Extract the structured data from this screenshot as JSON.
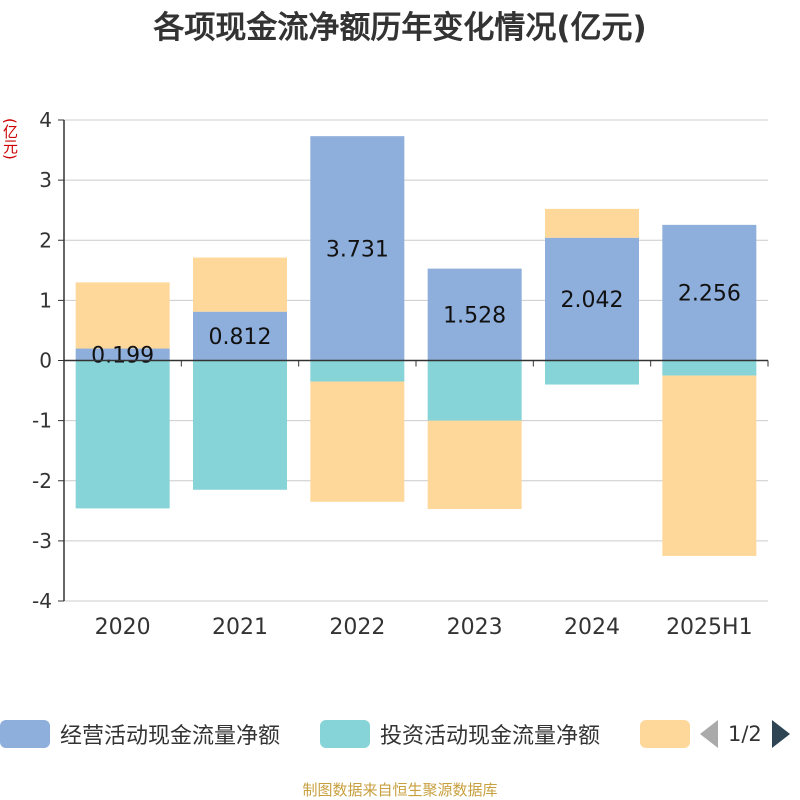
{
  "chart_data": {
    "type": "bar",
    "stacked": true,
    "title": "各项现金流净额历年变化情况(亿元)",
    "unit_label": "(亿元)",
    "categories": [
      "2020",
      "2021",
      "2022",
      "2023",
      "2024",
      "2025H1"
    ],
    "ylim": [
      -4,
      4
    ],
    "yticks": [
      "4",
      "3",
      "2",
      "1",
      "0",
      "-1",
      "-2",
      "-3",
      "-4"
    ],
    "grid": true,
    "legend_position": "bottom",
    "series": [
      {
        "name": "经营活动现金流量净额",
        "color": "#8eaedb",
        "values": [
          0.199,
          0.812,
          3.731,
          1.528,
          2.042,
          2.256
        ],
        "labels": [
          "0.199",
          "0.812",
          "3.731",
          "1.528",
          "2.042",
          "2.256"
        ]
      },
      {
        "name": "投资活动现金流量净额",
        "color": "#86d4d8",
        "values": [
          -2.46,
          -2.15,
          -0.35,
          -1.0,
          -0.4,
          -0.25
        ]
      },
      {
        "name": "",
        "color": "#fdd89a",
        "values": [
          1.1,
          0.9,
          -2.0,
          -1.47,
          0.48,
          -3.0
        ]
      }
    ]
  },
  "legend": {
    "pager_text": "1/2"
  },
  "source": "制图数据来自恒生聚源数据库"
}
